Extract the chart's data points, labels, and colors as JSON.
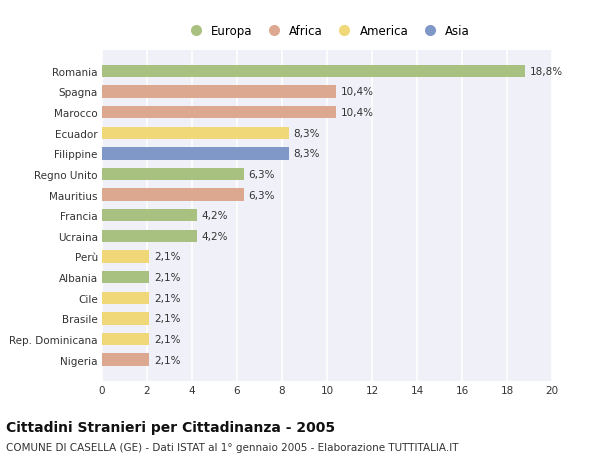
{
  "title": "Cittadini Stranieri per Cittadinanza - 2005",
  "subtitle": "COMUNE DI CASELLA (GE) - Dati ISTAT al 1° gennaio 2005 - Elaborazione TUTTITALIA.IT",
  "categories": [
    "Romania",
    "Spagna",
    "Marocco",
    "Ecuador",
    "Filippine",
    "Regno Unito",
    "Mauritius",
    "Francia",
    "Ucraina",
    "Perù",
    "Albania",
    "Cile",
    "Brasile",
    "Rep. Dominicana",
    "Nigeria"
  ],
  "values": [
    18.8,
    10.4,
    10.4,
    8.3,
    8.3,
    6.3,
    6.3,
    4.2,
    4.2,
    2.1,
    2.1,
    2.1,
    2.1,
    2.1,
    2.1
  ],
  "labels": [
    "18,8%",
    "10,4%",
    "10,4%",
    "8,3%",
    "8,3%",
    "6,3%",
    "6,3%",
    "4,2%",
    "4,2%",
    "2,1%",
    "2,1%",
    "2,1%",
    "2,1%",
    "2,1%",
    "2,1%"
  ],
  "colors": [
    "#a8c080",
    "#dda890",
    "#dda890",
    "#f0d878",
    "#8098c8",
    "#a8c080",
    "#dda890",
    "#a8c080",
    "#a8c080",
    "#f0d878",
    "#a8c080",
    "#f0d878",
    "#f0d878",
    "#f0d878",
    "#dda890"
  ],
  "legend": {
    "Europa": "#a8c080",
    "Africa": "#dda890",
    "America": "#f0d878",
    "Asia": "#8098c8"
  },
  "xlim": [
    0,
    20
  ],
  "xticks": [
    0,
    2,
    4,
    6,
    8,
    10,
    12,
    14,
    16,
    18,
    20
  ],
  "background_color": "#ffffff",
  "plot_bg_color": "#f0f0f8",
  "grid_color": "#ffffff",
  "label_fontsize": 7.5,
  "tick_fontsize": 7.5,
  "title_fontsize": 10,
  "subtitle_fontsize": 7.5
}
